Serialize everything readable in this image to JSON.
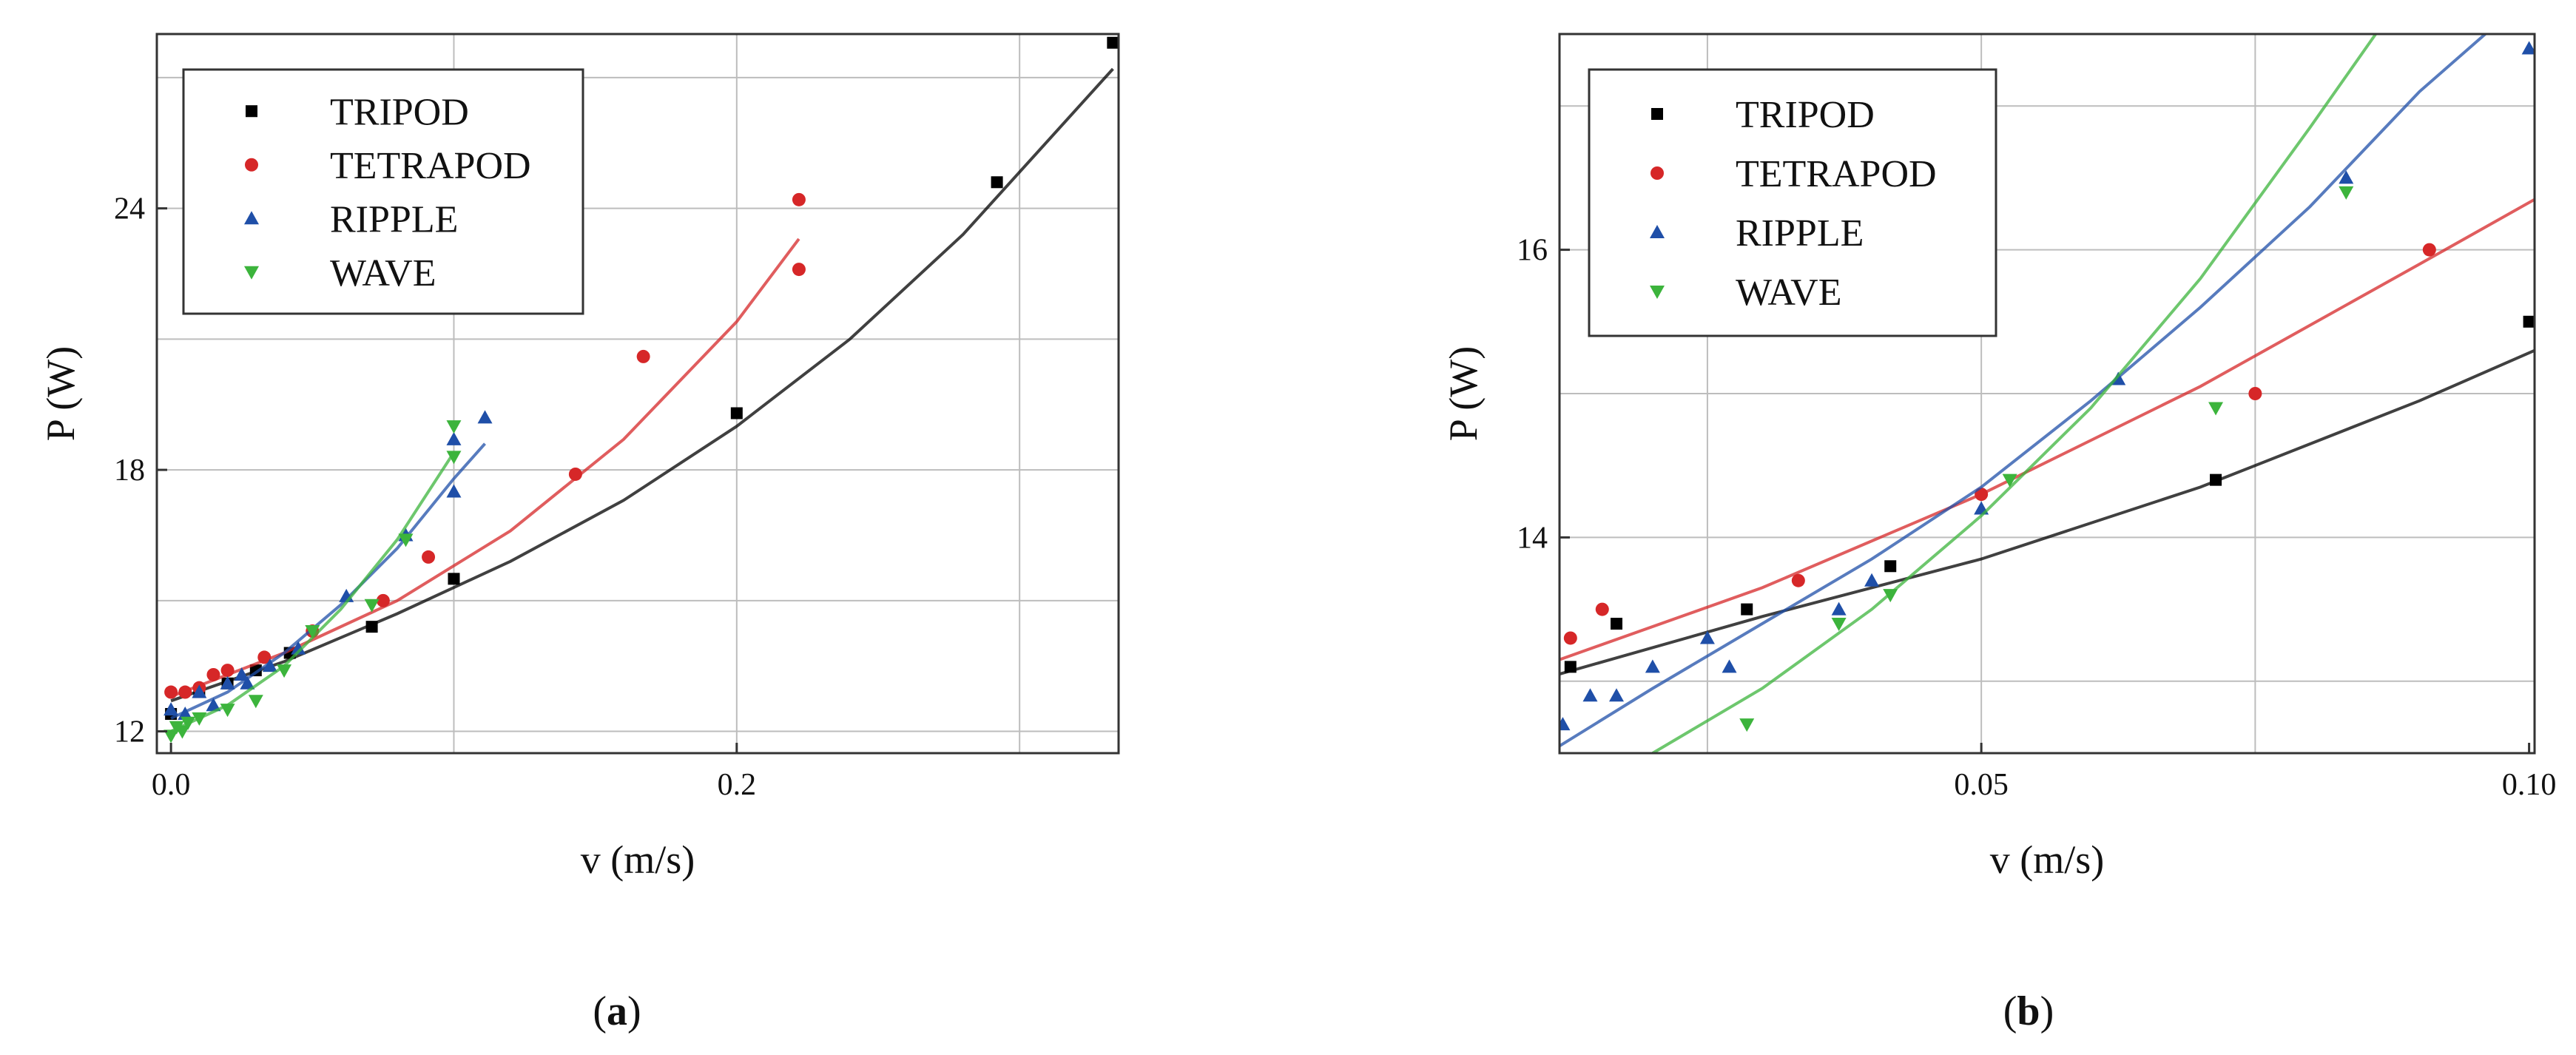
{
  "chart_data": [
    {
      "type": "scatter",
      "panel_label": "(a)",
      "panel_letter": "a",
      "xlabel": "v (m/s)",
      "ylabel": "P (W)",
      "xlim": [
        -0.005,
        0.335
      ],
      "ylim": [
        11.5,
        28.0
      ],
      "xticks": [
        0.0,
        0.2
      ],
      "xtick_labels": [
        "0.0",
        "0.2"
      ],
      "yticks": [
        12,
        18,
        24
      ],
      "ytick_labels": [
        "12",
        "18",
        "24"
      ],
      "grid_x": [
        0.1,
        0.2,
        0.3
      ],
      "grid_y": [
        12,
        15,
        18,
        21,
        24,
        27
      ],
      "grid": true,
      "legend_position": "top-left",
      "series": [
        {
          "name": "TRIPOD",
          "color": "#000000",
          "marker": "square",
          "x": [
            0.0,
            0.01,
            0.02,
            0.03,
            0.042,
            0.071,
            0.1,
            0.2,
            0.292,
            0.333
          ],
          "y": [
            12.4,
            12.9,
            13.1,
            13.4,
            13.8,
            14.4,
            15.5,
            19.3,
            24.6,
            27.8
          ],
          "fit_x": [
            0.0,
            0.04,
            0.08,
            0.12,
            0.16,
            0.2,
            0.24,
            0.28,
            0.333
          ],
          "fit_y": [
            12.7,
            13.6,
            14.7,
            15.9,
            17.3,
            19.0,
            21.0,
            23.4,
            27.2
          ]
        },
        {
          "name": "TETRAPOD",
          "color": "#d62728",
          "marker": "circle",
          "x": [
            0.0,
            0.005,
            0.01,
            0.015,
            0.02,
            0.033,
            0.05,
            0.075,
            0.091,
            0.143,
            0.167,
            0.222,
            0.222
          ],
          "y": [
            12.9,
            12.9,
            13.0,
            13.3,
            13.4,
            13.7,
            14.3,
            15.0,
            16.0,
            17.9,
            20.6,
            24.2,
            22.6
          ],
          "fit_x": [
            0.0,
            0.04,
            0.08,
            0.12,
            0.16,
            0.2,
            0.222
          ],
          "fit_y": [
            12.8,
            13.8,
            15.0,
            16.6,
            18.7,
            21.4,
            23.3
          ]
        },
        {
          "name": "RIPPLE",
          "color": "#1f4fa8",
          "marker": "triangle-up",
          "x": [
            0.0,
            0.005,
            0.01,
            0.015,
            0.02,
            0.025,
            0.027,
            0.035,
            0.045,
            0.062,
            0.083,
            0.1,
            0.1,
            0.111
          ],
          "y": [
            12.5,
            12.4,
            12.9,
            12.6,
            13.1,
            13.3,
            13.1,
            13.5,
            13.9,
            15.1,
            16.5,
            17.5,
            18.7,
            19.2
          ],
          "fit_x": [
            0.0,
            0.02,
            0.04,
            0.06,
            0.08,
            0.1,
            0.111
          ],
          "fit_y": [
            12.3,
            12.9,
            13.8,
            14.9,
            16.2,
            17.8,
            18.6
          ]
        },
        {
          "name": "WAVE",
          "color": "#3cb43c",
          "marker": "triangle-down",
          "x": [
            0.0,
            0.002,
            0.004,
            0.006,
            0.01,
            0.02,
            0.03,
            0.04,
            0.05,
            0.071,
            0.083,
            0.1,
            0.1
          ],
          "y": [
            11.9,
            12.1,
            12.0,
            12.2,
            12.3,
            12.5,
            12.7,
            13.4,
            14.3,
            14.9,
            16.4,
            18.3,
            19.0
          ],
          "fit_x": [
            0.0,
            0.02,
            0.04,
            0.06,
            0.08,
            0.1
          ],
          "fit_y": [
            12.0,
            12.6,
            13.5,
            14.8,
            16.4,
            18.4
          ]
        }
      ]
    },
    {
      "type": "scatter",
      "panel_label": "(b)",
      "panel_letter": "b",
      "xlabel": "v (m/s)",
      "ylabel": "P (W)",
      "xlim": [
        0.0115,
        0.1005
      ],
      "ylim": [
        12.5,
        17.5
      ],
      "xticks": [
        0.05,
        0.1
      ],
      "xtick_labels": [
        "0.05",
        "0.10"
      ],
      "yticks": [
        14,
        16
      ],
      "ytick_labels": [
        "14",
        "16"
      ],
      "grid_x": [
        0.025,
        0.05,
        0.075
      ],
      "grid_y": [
        13,
        14,
        15,
        16,
        17
      ],
      "grid": true,
      "legend_position": "top-left",
      "series": [
        {
          "name": "TRIPOD",
          "color": "#000000",
          "marker": "square",
          "x": [
            0.0125,
            0.0167,
            0.0286,
            0.0417,
            0.0714,
            0.1
          ],
          "y": [
            13.1,
            13.4,
            13.5,
            13.8,
            14.4,
            15.5
          ],
          "fit_x": [
            0.0115,
            0.03,
            0.05,
            0.07,
            0.09,
            0.1005
          ],
          "fit_y": [
            13.05,
            13.45,
            13.85,
            14.35,
            14.95,
            15.3
          ]
        },
        {
          "name": "TETRAPOD",
          "color": "#d62728",
          "marker": "circle",
          "x": [
            0.0125,
            0.0154,
            0.0333,
            0.05,
            0.075,
            0.0909
          ],
          "y": [
            13.3,
            13.5,
            13.7,
            14.3,
            15.0,
            16.0
          ],
          "fit_x": [
            0.0115,
            0.03,
            0.05,
            0.07,
            0.09,
            0.1005
          ],
          "fit_y": [
            13.15,
            13.65,
            14.3,
            15.05,
            15.9,
            16.35
          ]
        },
        {
          "name": "RIPPLE",
          "color": "#1f4fa8",
          "marker": "triangle-up",
          "x": [
            0.0118,
            0.0143,
            0.0167,
            0.02,
            0.025,
            0.027,
            0.037,
            0.04,
            0.05,
            0.0625,
            0.0833,
            0.1
          ],
          "y": [
            12.7,
            12.9,
            12.9,
            13.1,
            13.3,
            13.1,
            13.5,
            13.7,
            14.2,
            15.1,
            16.5,
            17.4
          ],
          "fit_x": [
            0.0115,
            0.02,
            0.03,
            0.04,
            0.05,
            0.06,
            0.07,
            0.08,
            0.09,
            0.096
          ],
          "fit_y": [
            12.55,
            12.95,
            13.4,
            13.85,
            14.35,
            14.95,
            15.6,
            16.3,
            17.1,
            17.5
          ]
        },
        {
          "name": "WAVE",
          "color": "#3cb43c",
          "marker": "triangle-down",
          "x": [
            0.0286,
            0.037,
            0.0417,
            0.0526,
            0.0714,
            0.0833
          ],
          "y": [
            12.7,
            13.4,
            13.6,
            14.4,
            14.9,
            16.4
          ],
          "fit_x": [
            0.02,
            0.03,
            0.04,
            0.05,
            0.06,
            0.07,
            0.08,
            0.086
          ],
          "fit_y": [
            12.5,
            12.95,
            13.5,
            14.15,
            14.9,
            15.8,
            16.85,
            17.5
          ]
        }
      ]
    }
  ]
}
